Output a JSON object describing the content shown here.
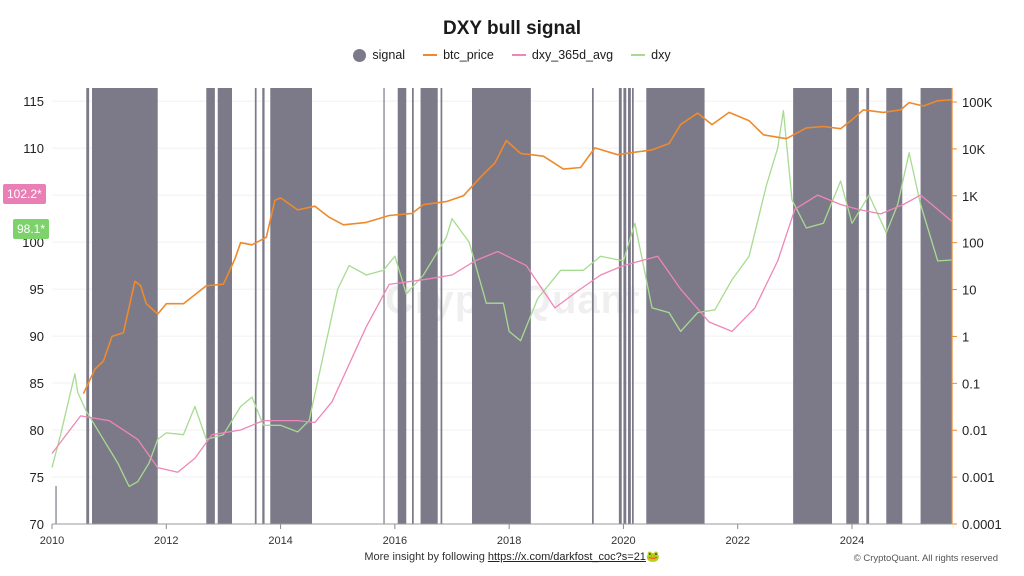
{
  "chart_data": {
    "type": "line",
    "title": "DXY bull signal",
    "legend": [
      {
        "name": "signal",
        "color": "#7c7a88",
        "style": "dot"
      },
      {
        "name": "btc_price",
        "color": "#ee8a2c",
        "style": "line"
      },
      {
        "name": "dxy_365d_avg",
        "color": "#ef86b8",
        "style": "line"
      },
      {
        "name": "dxy",
        "color": "#a6dc90",
        "style": "line"
      }
    ],
    "x_ticks": [
      "2010",
      "2012",
      "2014",
      "2016",
      "2018",
      "2020",
      "2022",
      "2024"
    ],
    "xlim": [
      2010.0,
      2025.75
    ],
    "y_left_ticks": [
      "70",
      "75",
      "80",
      "85",
      "90",
      "95",
      "100",
      "105",
      "110",
      "115"
    ],
    "y_left_range": [
      70,
      116.4
    ],
    "y_right_ticks": [
      "0.0001",
      "0.001",
      "0.01",
      "0.1",
      "1",
      "10",
      "100",
      "1K",
      "10K",
      "100K"
    ],
    "y_right_scale": "log",
    "last_values": {
      "dxy_365d_avg": "102.2*",
      "dxy": "98.1*"
    },
    "series": [
      {
        "name": "dxy",
        "x": [
          2010.0,
          2010.15,
          2010.4,
          2010.45,
          2010.6,
          2010.9,
          2011.15,
          2011.35,
          2011.5,
          2011.7,
          2011.85,
          2012.0,
          2012.3,
          2012.5,
          2012.7,
          2013.0,
          2013.3,
          2013.5,
          2013.7,
          2014.0,
          2014.3,
          2014.5,
          2014.75,
          2015.0,
          2015.2,
          2015.5,
          2015.8,
          2016.0,
          2016.2,
          2016.5,
          2016.9,
          2017.0,
          2017.3,
          2017.6,
          2017.9,
          2018.0,
          2018.2,
          2018.5,
          2018.9,
          2019.3,
          2019.6,
          2020.0,
          2020.2,
          2020.5,
          2020.8,
          2021.0,
          2021.3,
          2021.6,
          2021.9,
          2022.2,
          2022.5,
          2022.7,
          2022.8,
          2022.95,
          2023.2,
          2023.5,
          2023.8,
          2024.0,
          2024.3,
          2024.6,
          2024.8,
          2025.0,
          2025.2,
          2025.5,
          2025.75
        ],
        "y": [
          76.0,
          79.5,
          86.0,
          84.0,
          82.0,
          79.0,
          76.5,
          74.0,
          74.5,
          76.5,
          79.0,
          79.7,
          79.5,
          82.5,
          79.0,
          79.5,
          82.5,
          83.5,
          80.5,
          80.5,
          79.8,
          81.0,
          88.0,
          95.0,
          97.5,
          96.5,
          97.0,
          98.5,
          94.5,
          96.5,
          100.5,
          102.5,
          100.0,
          93.5,
          93.5,
          90.5,
          89.5,
          94.0,
          97.0,
          97.0,
          98.5,
          98.0,
          102.0,
          93.0,
          92.5,
          90.5,
          92.5,
          92.8,
          96.0,
          98.5,
          106.0,
          110.0,
          114.0,
          104.5,
          101.5,
          102.0,
          106.5,
          102.0,
          105.0,
          101.0,
          104.0,
          109.5,
          104.0,
          98.0,
          98.1
        ]
      },
      {
        "name": "dxy_365d_avg",
        "x": [
          2010.0,
          2010.5,
          2011.0,
          2011.5,
          2011.85,
          2012.2,
          2012.5,
          2012.8,
          2013.3,
          2013.7,
          2014.3,
          2014.6,
          2014.9,
          2015.5,
          2015.9,
          2016.5,
          2017.0,
          2017.4,
          2017.8,
          2018.3,
          2018.8,
          2019.2,
          2019.6,
          2020.0,
          2020.3,
          2020.6,
          2021.0,
          2021.5,
          2021.9,
          2022.3,
          2022.7,
          2023.0,
          2023.4,
          2023.8,
          2024.1,
          2024.5,
          2024.9,
          2025.2,
          2025.75
        ],
        "y": [
          77.5,
          81.5,
          81.0,
          79.0,
          76.0,
          75.5,
          77.0,
          79.5,
          80.0,
          81.0,
          81.0,
          80.8,
          83.0,
          91.0,
          95.5,
          96.0,
          96.5,
          98.0,
          99.0,
          97.5,
          93.0,
          94.8,
          96.5,
          97.5,
          98.0,
          98.5,
          95.0,
          91.5,
          90.5,
          93.0,
          98.0,
          103.5,
          105.0,
          104.0,
          103.5,
          103.0,
          104.0,
          105.0,
          102.2
        ]
      },
      {
        "name": "btc_price",
        "x": [
          2010.55,
          2010.75,
          2010.9,
          2011.05,
          2011.25,
          2011.45,
          2011.55,
          2011.65,
          2011.85,
          2012.0,
          2012.3,
          2012.7,
          2013.0,
          2013.2,
          2013.3,
          2013.5,
          2013.75,
          2013.9,
          2014.0,
          2014.3,
          2014.6,
          2014.85,
          2015.1,
          2015.5,
          2015.9,
          2016.3,
          2016.5,
          2016.9,
          2017.2,
          2017.5,
          2017.75,
          2017.95,
          2018.2,
          2018.6,
          2018.95,
          2019.25,
          2019.5,
          2019.9,
          2020.2,
          2020.5,
          2020.8,
          2021.0,
          2021.3,
          2021.55,
          2021.85,
          2022.2,
          2022.45,
          2022.85,
          2023.2,
          2023.5,
          2023.8,
          2024.0,
          2024.2,
          2024.55,
          2024.85,
          2025.0,
          2025.25,
          2025.5,
          2025.75
        ],
        "y": [
          0.06,
          0.2,
          0.3,
          1.0,
          1.2,
          15.0,
          12.0,
          5.0,
          3.0,
          5.0,
          5.0,
          12.0,
          13.0,
          45.0,
          100.0,
          90.0,
          130.0,
          800.0,
          900.0,
          500.0,
          600.0,
          350.0,
          240.0,
          270.0,
          380.0,
          420.0,
          650.0,
          750.0,
          1000.0,
          2500.0,
          5000.0,
          15000.0,
          8000.0,
          7000.0,
          3700.0,
          4000.0,
          10500.0,
          7500.0,
          8500.0,
          9500.0,
          13000.0,
          33000.0,
          58000.0,
          33000.0,
          60000.0,
          40000.0,
          20000.0,
          16500.0,
          28000.0,
          30000.0,
          27000.0,
          42000.0,
          68000.0,
          60000.0,
          68000.0,
          97000.0,
          82000.0,
          106000.0,
          112000.0
        ]
      },
      {
        "name": "signal",
        "type": "bands",
        "ranges": [
          [
            2010.06,
            2010.07
          ],
          [
            2010.6,
            2010.65
          ],
          [
            2010.7,
            2011.85
          ],
          [
            2012.7,
            2012.85
          ],
          [
            2012.9,
            2013.15
          ],
          [
            2013.55,
            2013.58
          ],
          [
            2013.68,
            2013.72
          ],
          [
            2013.82,
            2014.55
          ],
          [
            2015.8,
            2015.82
          ],
          [
            2016.05,
            2016.2
          ],
          [
            2016.3,
            2016.33
          ],
          [
            2016.45,
            2016.75
          ],
          [
            2016.8,
            2016.83
          ],
          [
            2017.35,
            2018.38
          ],
          [
            2019.45,
            2019.48
          ],
          [
            2019.92,
            2019.97
          ],
          [
            2020.0,
            2020.05
          ],
          [
            2020.08,
            2020.13
          ],
          [
            2020.15,
            2020.18
          ],
          [
            2020.4,
            2021.42
          ],
          [
            2022.97,
            2023.65
          ],
          [
            2023.9,
            2024.12
          ],
          [
            2024.25,
            2024.3
          ],
          [
            2024.6,
            2024.88
          ],
          [
            2025.2,
            2025.75
          ]
        ]
      }
    ]
  },
  "labels": {
    "title": "DXY bull signal",
    "legend_signal": "signal",
    "legend_btc": "btc_price",
    "legend_avg": "dxy_365d_avg",
    "legend_dxy": "dxy",
    "badge_avg": "102.2*",
    "badge_dxy": "98.1*",
    "footer_text": "More insight by following ",
    "footer_link": "https://x.com/darkfost_coc?s=21",
    "footer_emoji": "🐸",
    "copyright": "© CryptoQuant. All rights reserved",
    "watermark": "CryptoQuant"
  }
}
